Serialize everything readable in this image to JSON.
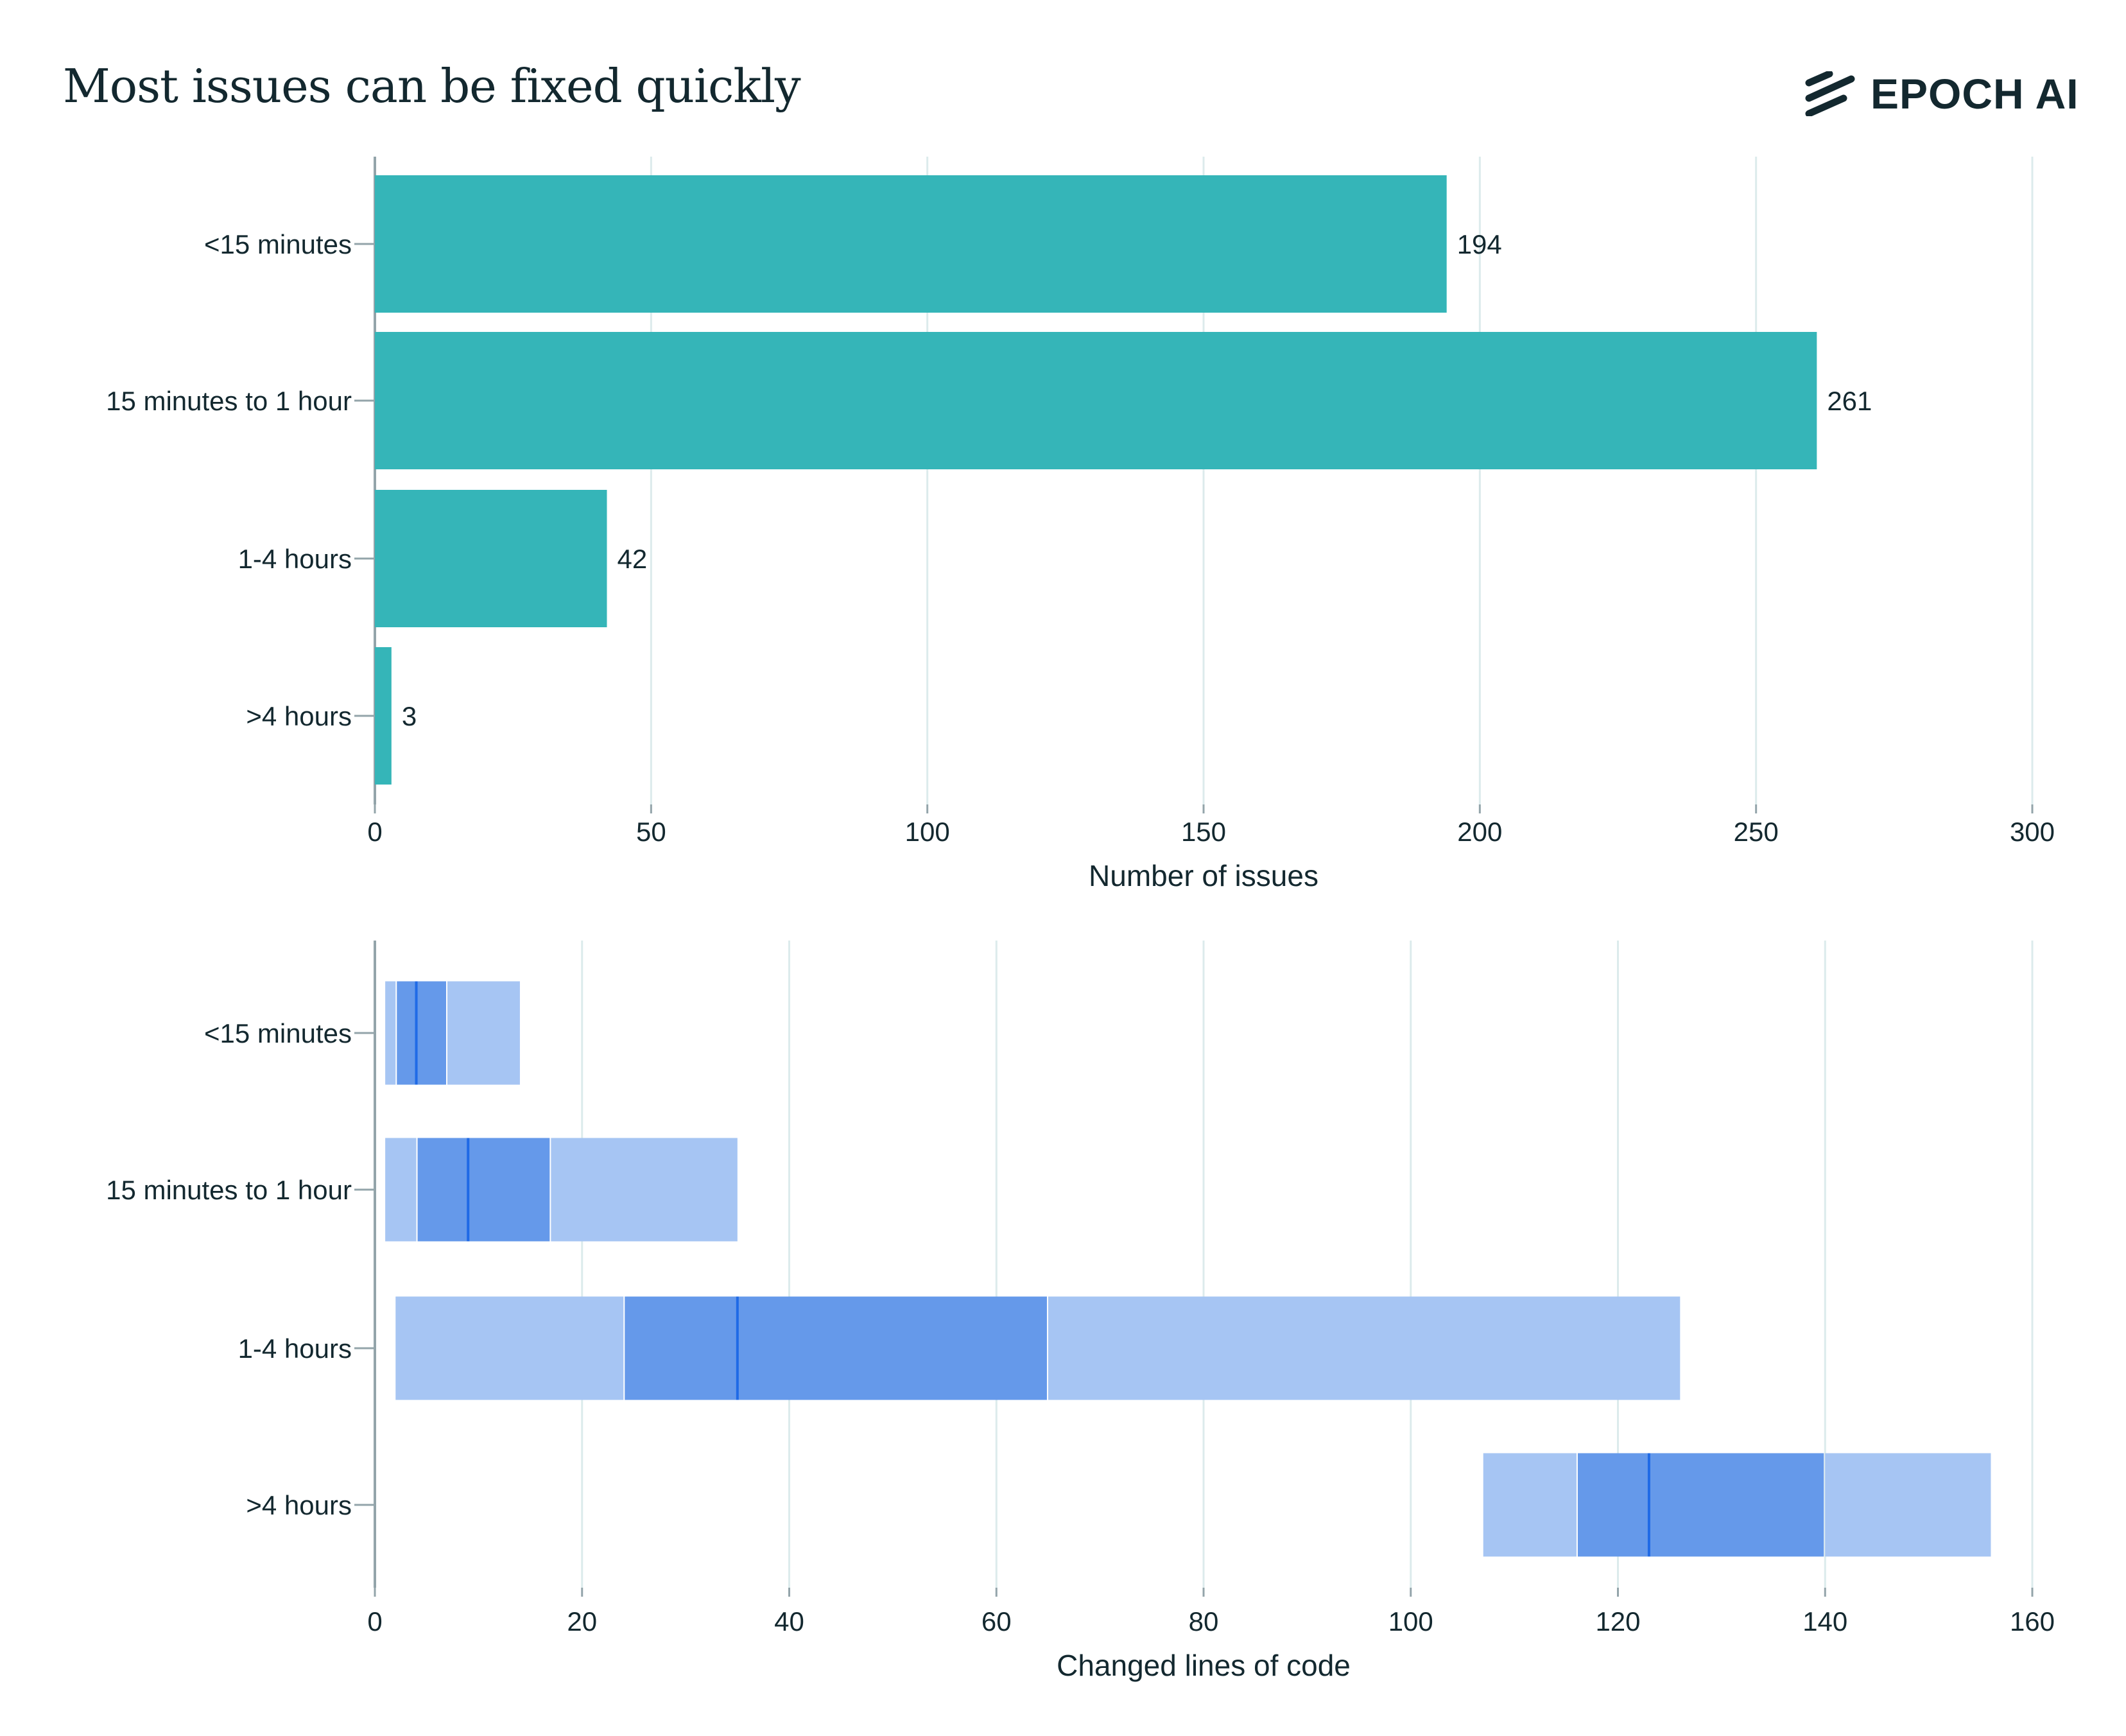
{
  "title": "Most issues can be fixed quickly",
  "logo": {
    "text": "EPOCH AI",
    "icon": "epoch-stripes-icon"
  },
  "colors": {
    "teal": "#35b5b8",
    "box_outer": "#a6c5f3",
    "box_inner": "#6599ea",
    "median": "#1f6ae6",
    "text": "#13282f",
    "grid": "#dcebec",
    "axis": "#93a4aa"
  },
  "chart_data": [
    {
      "type": "bar",
      "orientation": "horizontal",
      "categories": [
        "<15 minutes",
        "15 minutes to 1 hour",
        "1-4 hours",
        ">4 hours"
      ],
      "values": [
        194,
        261,
        42,
        3
      ],
      "data_labels": [
        "194",
        "261",
        "42",
        "3"
      ],
      "xlabel": "Number of issues",
      "ylabel": "",
      "xlim": [
        0,
        300
      ],
      "xticks": [
        "0",
        "50",
        "100",
        "150",
        "200",
        "250",
        "300"
      ],
      "grid": "vertical"
    },
    {
      "type": "box",
      "orientation": "horizontal",
      "categories": [
        "<15 minutes",
        "15 minutes to 1 hour",
        "1-4 hours",
        ">4 hours"
      ],
      "series": [
        {
          "name": "<15 minutes",
          "low": 1,
          "q1": 2,
          "median": 4,
          "q3": 7,
          "high": 14
        },
        {
          "name": "15 minutes to 1 hour",
          "low": 1,
          "q1": 4,
          "median": 9,
          "q3": 17,
          "high": 35
        },
        {
          "name": "1-4 hours",
          "low": 2,
          "q1": 24,
          "median": 35,
          "q3": 65,
          "high": 126
        },
        {
          "name": ">4 hours",
          "low": 107,
          "q1": 116,
          "median": 123,
          "q3": 140,
          "high": 156
        }
      ],
      "xlabel": "Changed lines of code",
      "ylabel": "",
      "xlim": [
        0,
        160
      ],
      "xticks": [
        "0",
        "20",
        "40",
        "60",
        "80",
        "100",
        "120",
        "140",
        "160"
      ],
      "grid": "vertical"
    }
  ]
}
